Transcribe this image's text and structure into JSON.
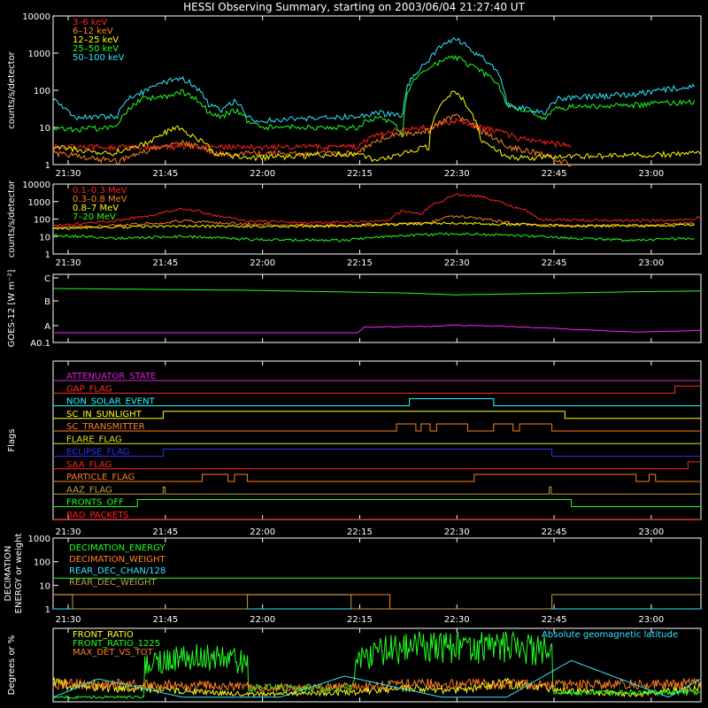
{
  "title": "HESSI Observing Summary, starting on 2003/06/04 21:27:40 UT",
  "time_ticks": [
    "21:30",
    "21:45",
    "22:00",
    "22:15",
    "22:30",
    "22:45",
    "23:00"
  ],
  "time_tick_minutes": [
    2.33,
    17.33,
    32.33,
    47.33,
    62.33,
    77.33,
    92.33
  ],
  "time_span_minutes": 100,
  "chart_data": [
    {
      "type": "line",
      "ylabel": "counts/s/detector",
      "yscale": "log",
      "ylim": [
        1,
        10000
      ],
      "ytick_labels": [
        "1",
        "10",
        "100",
        "1000",
        "10000"
      ],
      "ytick_values": [
        1,
        10,
        100,
        1000,
        10000
      ],
      "x_units": "minutes since 21:27:40",
      "series": [
        {
          "name": "3–6 keV",
          "color": "#ff2020",
          "x": [
            0,
            47,
            52,
            58,
            62,
            66,
            72,
            80
          ],
          "y": [
            3,
            3,
            8,
            10,
            15,
            10,
            5,
            3
          ]
        },
        {
          "name": "6–12 keV",
          "color": "#ff8020",
          "x": [
            0,
            10,
            17,
            20,
            25,
            47,
            52,
            58,
            62,
            66,
            70,
            80
          ],
          "y": [
            2,
            1.2,
            3,
            4,
            2,
            2,
            6,
            8,
            20,
            8,
            3,
            1
          ]
        },
        {
          "name": "12–25 keV",
          "color": "#ffff00",
          "x": [
            0,
            9,
            15,
            17,
            19,
            22,
            25,
            30,
            47,
            50,
            58,
            60,
            62,
            64,
            66,
            70,
            100
          ],
          "y": [
            3,
            2,
            4,
            7,
            10,
            5,
            2,
            1.5,
            2,
            1.2,
            3,
            40,
            100,
            30,
            4,
            1.5,
            2
          ]
        },
        {
          "name": "25–50 keV",
          "color": "#20ff20",
          "x": [
            0,
            3,
            10,
            14,
            18,
            20,
            24,
            26,
            28,
            30,
            32,
            47,
            50,
            54,
            58,
            62,
            65,
            70,
            76,
            78,
            90,
            99
          ],
          "y": [
            10,
            9,
            10,
            60,
            70,
            90,
            25,
            20,
            30,
            15,
            10,
            10,
            20,
            7,
            400,
            800,
            400,
            40,
            15,
            35,
            40,
            50
          ]
        },
        {
          "name": "50–100 keV",
          "color": "#30e8ff",
          "x": [
            0,
            3,
            10,
            12,
            14,
            18,
            20,
            24,
            26,
            28,
            30,
            32,
            47,
            50,
            54,
            58,
            62,
            65,
            70,
            76,
            78,
            90,
            99
          ],
          "y": [
            60,
            18,
            20,
            70,
            90,
            180,
            210,
            40,
            30,
            50,
            20,
            15,
            20,
            25,
            20,
            600,
            2500,
            1000,
            40,
            25,
            60,
            80,
            130
          ]
        }
      ]
    },
    {
      "type": "line",
      "ylabel": "counts/s/detector",
      "yscale": "log",
      "ylim": [
        1,
        10000
      ],
      "ytick_labels": [
        "1",
        "10",
        "100",
        "1000",
        "10000"
      ],
      "ytick_values": [
        1,
        10,
        100,
        1000,
        10000
      ],
      "x_units": "minutes since 21:27:40",
      "series": [
        {
          "name": "0.1–0.3 MeV",
          "color": "#ff2020",
          "x": [
            0,
            10,
            15,
            20,
            25,
            30,
            40,
            47,
            52,
            54,
            57,
            60,
            62,
            66,
            70,
            75,
            80,
            90,
            99,
            100
          ],
          "y": [
            40,
            80,
            150,
            400,
            150,
            80,
            60,
            70,
            80,
            300,
            200,
            1000,
            2500,
            2000,
            600,
            90,
            90,
            80,
            90,
            150
          ]
        },
        {
          "name": "0.3–0.8 MeV",
          "color": "#ff8020",
          "x": [
            0,
            10,
            17,
            20,
            25,
            35,
            47,
            58,
            62,
            66,
            72,
            80,
            90,
            99
          ],
          "y": [
            30,
            45,
            60,
            80,
            60,
            45,
            40,
            60,
            150,
            100,
            50,
            40,
            40,
            60
          ]
        },
        {
          "name": "0.8–7 MeV",
          "color": "#ffff00",
          "x": [
            0,
            20,
            40,
            62,
            80,
            99
          ],
          "y": [
            30,
            40,
            38,
            60,
            40,
            45
          ]
        },
        {
          "name": "7–20 MeV",
          "color": "#20ff20",
          "x": [
            0,
            10,
            20,
            30,
            45,
            55,
            62,
            70,
            80,
            90,
            99
          ],
          "y": [
            12,
            8,
            10,
            7,
            6,
            12,
            15,
            12,
            8,
            6,
            8
          ]
        }
      ]
    },
    {
      "type": "line",
      "ylabel": "GOES-12 [W m⁻²]",
      "ytick_labels": [
        "A0.1",
        "A",
        "B",
        "C"
      ],
      "ylim_class": [
        "A0.1",
        "C"
      ],
      "x_units": "minutes since 21:27:40",
      "series": [
        {
          "name": "long",
          "color": "#20ff20",
          "x": [
            0,
            30,
            55,
            62,
            75,
            90,
            100
          ],
          "y": [
            0.0,
            -0.25,
            -0.65,
            -0.9,
            -0.7,
            -0.45,
            -0.35
          ]
        },
        {
          "name": "short",
          "color": "#ff20ff",
          "x": [
            0,
            47,
            48,
            58,
            62,
            70,
            90,
            99,
            100
          ],
          "y": [
            0,
            0,
            0.8,
            0.9,
            1.05,
            0.9,
            0.1,
            0.3,
            0.35
          ]
        }
      ]
    },
    {
      "type": "line",
      "ylabel": "Flags",
      "x_units": "minutes since 21:27:40",
      "flags": [
        {
          "name": "ATTENUATOR_STATE",
          "color": "#e020e0",
          "transitions": []
        },
        {
          "name": "GAP_FLAG",
          "color": "#ff3020",
          "transitions": [
            96
          ]
        },
        {
          "name": "NON_SOLAR_EVENT",
          "color": "#20ffff",
          "transitions": [
            55,
            68
          ]
        },
        {
          "name": "SC_IN_SUNLIGHT",
          "color": "#ffff20",
          "transitions": [
            17,
            79
          ]
        },
        {
          "name": "SC_TRANSMITTER",
          "color": "#ff8020",
          "transitions": [
            53,
            56,
            56.8,
            58.2,
            59.2,
            64,
            68,
            71,
            72,
            77
          ]
        },
        {
          "name": "FLARE_FLAG",
          "color": "#e0e020",
          "transitions": []
        },
        {
          "name": "ECLIPSE_FLAG",
          "color": "#3030ff",
          "transitions": [
            17,
            77
          ]
        },
        {
          "name": "SAA_FLAG",
          "color": "#ff2020",
          "transitions": [
            98
          ]
        },
        {
          "name": "PARTICLE_FLAG",
          "color": "#ff8020",
          "transitions": [
            23,
            27,
            28,
            30,
            65,
            90,
            92,
            93
          ]
        },
        {
          "name": "AAZ_FLAG",
          "color": "#c0a040",
          "transitions": [
            17,
            17.3,
            76.6,
            76.9
          ]
        },
        {
          "name": "FRONTS_OFF",
          "color": "#20ff20",
          "transitions": [
            13,
            80
          ]
        },
        {
          "name": "BAD_PACKETS",
          "color": "#ff2020",
          "transitions": []
        }
      ]
    },
    {
      "type": "line",
      "ylabel": "DECIMATION ENERGY or weight",
      "yscale": "log",
      "ylim": [
        1,
        1000
      ],
      "ytick_labels": [
        "1",
        "10",
        "100",
        "1000"
      ],
      "ytick_values": [
        1,
        10,
        100,
        1000
      ],
      "x_units": "minutes since 21:27:40",
      "series": [
        {
          "name": "DECIMATION_ENERGY",
          "color": "#20ff20",
          "x": [
            0,
            100
          ],
          "y": [
            20,
            20
          ]
        },
        {
          "name": "DECIMATION_WEIGHT",
          "color": "#ff8020",
          "x": [
            0,
            52,
            52,
            100
          ],
          "y": [
            4,
            4,
            1,
            1
          ]
        },
        {
          "name": "REAR_DEC_CHAN/128",
          "color": "#30e8ff",
          "x": [
            0,
            100
          ],
          "y": [
            1,
            1
          ]
        },
        {
          "name": "REAR_DEC_WEIGHT",
          "color": "#c0a040",
          "x": [
            0,
            3,
            3,
            30,
            30,
            46,
            46,
            77,
            77,
            100
          ],
          "y": [
            4,
            4,
            1,
            1,
            4,
            4,
            1,
            1,
            4,
            4
          ]
        }
      ]
    },
    {
      "type": "line",
      "ylabel": "Degrees or %",
      "ylim": [
        0,
        80
      ],
      "x_units": "minutes since 21:27:40",
      "annotation": "Absolute geomagnetic latitude",
      "series": [
        {
          "name": "FRONT_RATIO",
          "color": "#ffff20",
          "x": [
            0,
            10,
            20,
            30,
            45,
            55,
            62,
            70,
            80,
            90,
            100
          ],
          "y": [
            20,
            15,
            12,
            8,
            10,
            15,
            12,
            20,
            12,
            8,
            15
          ]
        },
        {
          "name": "FRONT_RATIO_1225",
          "color": "#20ff20",
          "x": [
            0,
            14,
            14,
            18,
            22,
            28,
            30,
            30,
            46,
            47,
            50,
            56,
            62,
            70,
            76,
            77,
            77,
            100
          ],
          "y": [
            5,
            5,
            40,
            45,
            50,
            45,
            42,
            15,
            15,
            45,
            55,
            60,
            58,
            60,
            55,
            50,
            10,
            10
          ]
        },
        {
          "name": "MAX_DET_VS_TOT",
          "color": "#ff8020",
          "x": [
            0,
            20,
            40,
            60,
            80,
            100
          ],
          "y": [
            20,
            18,
            15,
            20,
            18,
            20
          ]
        },
        {
          "name": "Absolute geomagnetic latitude",
          "color": "#30e8ff",
          "x": [
            0,
            7,
            20,
            35,
            45,
            60,
            70,
            80,
            95,
            100
          ],
          "y": [
            5,
            25,
            5,
            5,
            28,
            5,
            5,
            45,
            5,
            25
          ]
        }
      ]
    }
  ]
}
